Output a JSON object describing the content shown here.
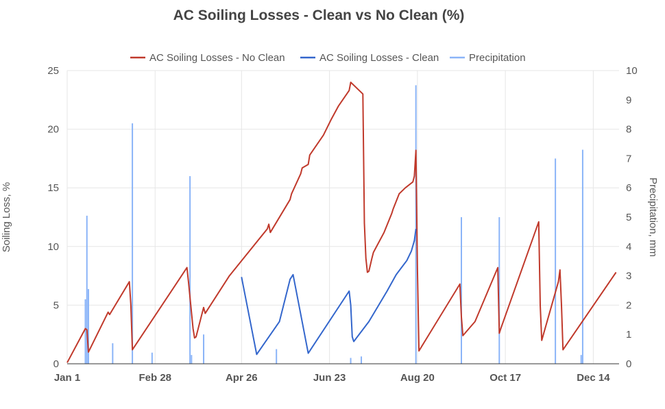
{
  "chart_data": {
    "type": "line",
    "title": "AC Soiling Losses - Clean vs No Clean (%)",
    "ylabel": "Soiling Loss, %",
    "y2label": "Precipitation, mm",
    "xlabel": "",
    "ylim": [
      0,
      25
    ],
    "y2lim": [
      0,
      10
    ],
    "xlim": [
      1,
      365
    ],
    "x_unit": "day of year",
    "yticks": [
      "0",
      "5",
      "10",
      "15",
      "20",
      "25"
    ],
    "y2ticks": [
      "0",
      "1",
      "2",
      "3",
      "4",
      "5",
      "6",
      "7",
      "8",
      "9",
      "10"
    ],
    "xticks": [
      {
        "label": "Jan 1",
        "day": 1
      },
      {
        "label": "Feb 28",
        "day": 59
      },
      {
        "label": "Apr 26",
        "day": 116
      },
      {
        "label": "Jun 23",
        "day": 174
      },
      {
        "label": "Aug 20",
        "day": 232
      },
      {
        "label": "Oct 17",
        "day": 290
      },
      {
        "label": "Dec 14",
        "day": 348
      }
    ],
    "grid": true,
    "legend_position": "top",
    "series": [
      {
        "name": "AC Soiling Losses - No Clean",
        "axis": "left",
        "color": "#c0392b",
        "x": [
          1,
          13,
          14,
          15,
          28,
          29,
          42,
          43,
          44,
          80,
          81,
          84,
          85,
          86,
          91,
          92,
          108,
          133,
          134,
          135,
          148,
          149,
          155,
          156,
          160,
          161,
          170,
          175,
          180,
          187,
          188,
          196,
          197,
          198,
          199,
          200,
          202,
          203,
          210,
          215,
          216,
          220,
          224,
          229,
          230,
          231,
          232,
          233,
          260,
          261,
          262,
          270,
          285,
          286,
          287,
          312,
          313,
          314,
          325,
          326,
          327,
          328,
          363
        ],
        "y": [
          0.1,
          3.0,
          2.9,
          1.0,
          4.4,
          4.2,
          7.0,
          5.0,
          1.2,
          8.2,
          7.0,
          3.0,
          2.2,
          2.3,
          4.8,
          4.3,
          7.5,
          11.5,
          11.9,
          11.2,
          14.0,
          14.5,
          16.2,
          16.7,
          17.0,
          17.8,
          19.5,
          20.8,
          22.0,
          23.3,
          24.0,
          23.0,
          12.0,
          9.0,
          7.8,
          7.9,
          9.0,
          9.5,
          11.2,
          12.8,
          13.2,
          14.5,
          15.0,
          15.5,
          16.0,
          18.2,
          8.0,
          1.1,
          6.8,
          4.0,
          2.4,
          3.6,
          8.2,
          2.6,
          3.0,
          12.1,
          5.0,
          2.0,
          7.0,
          8.0,
          5.0,
          1.2,
          7.8
        ]
      },
      {
        "name": "AC Soiling Losses - Clean",
        "axis": "left",
        "color": "#3366cc",
        "x": [
          116,
          126,
          141,
          148,
          150,
          160,
          187,
          188,
          189,
          190,
          200,
          212,
          218,
          225,
          228,
          230,
          231
        ],
        "y": [
          7.4,
          0.8,
          3.6,
          7.2,
          7.6,
          0.9,
          6.2,
          5.0,
          2.3,
          1.9,
          3.6,
          6.2,
          7.6,
          8.8,
          9.6,
          10.5,
          11.5
        ]
      },
      {
        "name": "Precipitation",
        "axis": "right",
        "type": "bar",
        "color": "#8ab4f8",
        "x": [
          13,
          14,
          15,
          31,
          44,
          57,
          82,
          83,
          91,
          139,
          188,
          195,
          231,
          261,
          286,
          323,
          340,
          341
        ],
        "y": [
          2.2,
          5.05,
          2.55,
          0.7,
          8.2,
          0.38,
          6.4,
          0.3,
          1.0,
          0.5,
          0.2,
          0.25,
          9.5,
          5.0,
          5.0,
          7.0,
          0.3,
          7.3
        ]
      }
    ]
  }
}
